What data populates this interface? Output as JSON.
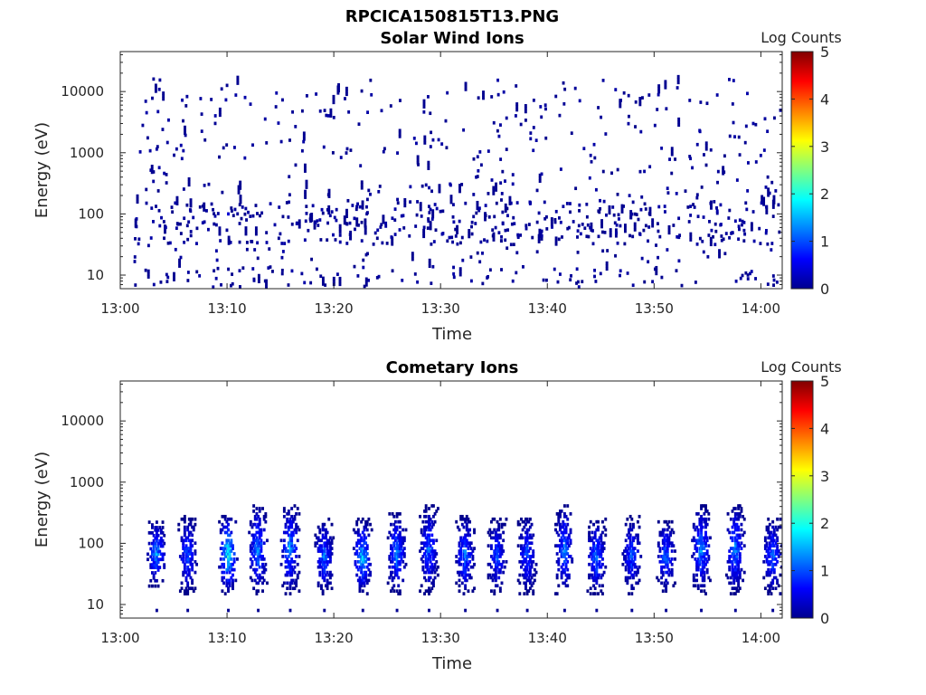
{
  "figure_title": "RPCICA150815T13.PNG",
  "chart_data": [
    {
      "type": "heatmap",
      "title": "Solar Wind Ions",
      "xlabel": "Time",
      "ylabel": "Energy (eV)",
      "x_ticks": [
        "13:00",
        "13:10",
        "13:20",
        "13:30",
        "13:40",
        "13:50",
        "14:00"
      ],
      "xlim": [
        "13:00",
        "14:02"
      ],
      "y_scale": "log",
      "y_ticks": [
        10,
        100,
        1000,
        10000
      ],
      "ylim": [
        6,
        45000
      ],
      "colorbar": {
        "label": "Log Counts",
        "min": 0,
        "max": 5,
        "ticks": [
          0,
          1,
          2,
          3,
          4,
          5
        ],
        "colormap": "jet"
      },
      "description_of_values": "Sparse scattered single counts (log counts ~0) across all energies 6–16000 eV; denser near 10 eV and 40–120 eV.",
      "notable_points": [
        {
          "time": "13:10",
          "energy_eV": 100,
          "log_counts": 0.4
        },
        {
          "time": "13:03",
          "energy_eV": 16000,
          "log_counts": 0.1
        }
      ]
    },
    {
      "type": "heatmap",
      "title": "Cometary Ions",
      "xlabel": "Time",
      "ylabel": "Energy (eV)",
      "x_ticks": [
        "13:00",
        "13:10",
        "13:20",
        "13:30",
        "13:40",
        "13:50",
        "14:00"
      ],
      "xlim": [
        "13:00",
        "14:02"
      ],
      "y_scale": "log",
      "y_ticks": [
        10,
        100,
        1000,
        10000
      ],
      "ylim": [
        6,
        45000
      ],
      "colorbar": {
        "label": "Log Counts",
        "min": 0,
        "max": 5,
        "ticks": [
          0,
          1,
          2,
          3,
          4,
          5
        ],
        "colormap": "jet"
      },
      "bursts": [
        {
          "time": "13:03.3",
          "e_low": 20,
          "e_high": 240,
          "peak_log_counts": 1.6
        },
        {
          "time": "13:06.2",
          "e_low": 15,
          "e_high": 280,
          "peak_log_counts": 1.3
        },
        {
          "time": "13:10.0",
          "e_low": 15,
          "e_high": 300,
          "peak_log_counts": 2.2
        },
        {
          "time": "13:12.8",
          "e_low": 15,
          "e_high": 440,
          "peak_log_counts": 1.5
        },
        {
          "time": "13:15.8",
          "e_low": 15,
          "e_high": 440,
          "peak_log_counts": 1.6
        },
        {
          "time": "13:19.0",
          "e_low": 15,
          "e_high": 250,
          "peak_log_counts": 1.3
        },
        {
          "time": "13:22.6",
          "e_low": 15,
          "e_high": 250,
          "peak_log_counts": 1.9
        },
        {
          "time": "13:25.8",
          "e_low": 15,
          "e_high": 330,
          "peak_log_counts": 1.5
        },
        {
          "time": "13:28.8",
          "e_low": 15,
          "e_high": 420,
          "peak_log_counts": 1.3
        },
        {
          "time": "13:32.2",
          "e_low": 15,
          "e_high": 290,
          "peak_log_counts": 1.4
        },
        {
          "time": "13:35.2",
          "e_low": 15,
          "e_high": 250,
          "peak_log_counts": 1.2
        },
        {
          "time": "13:38.0",
          "e_low": 15,
          "e_high": 280,
          "peak_log_counts": 1.2
        },
        {
          "time": "13:41.5",
          "e_low": 15,
          "e_high": 420,
          "peak_log_counts": 1.4
        },
        {
          "time": "13:44.5",
          "e_low": 15,
          "e_high": 250,
          "peak_log_counts": 1.5
        },
        {
          "time": "13:47.8",
          "e_low": 15,
          "e_high": 280,
          "peak_log_counts": 1.2
        },
        {
          "time": "13:51.0",
          "e_low": 15,
          "e_high": 240,
          "peak_log_counts": 1.3
        },
        {
          "time": "13:54.3",
          "e_low": 15,
          "e_high": 420,
          "peak_log_counts": 1.6
        },
        {
          "time": "13:57.5",
          "e_low": 15,
          "e_high": 450,
          "peak_log_counts": 1.5
        },
        {
          "time": "14:01.0",
          "e_low": 15,
          "e_high": 250,
          "peak_log_counts": 1.4
        }
      ]
    }
  ]
}
